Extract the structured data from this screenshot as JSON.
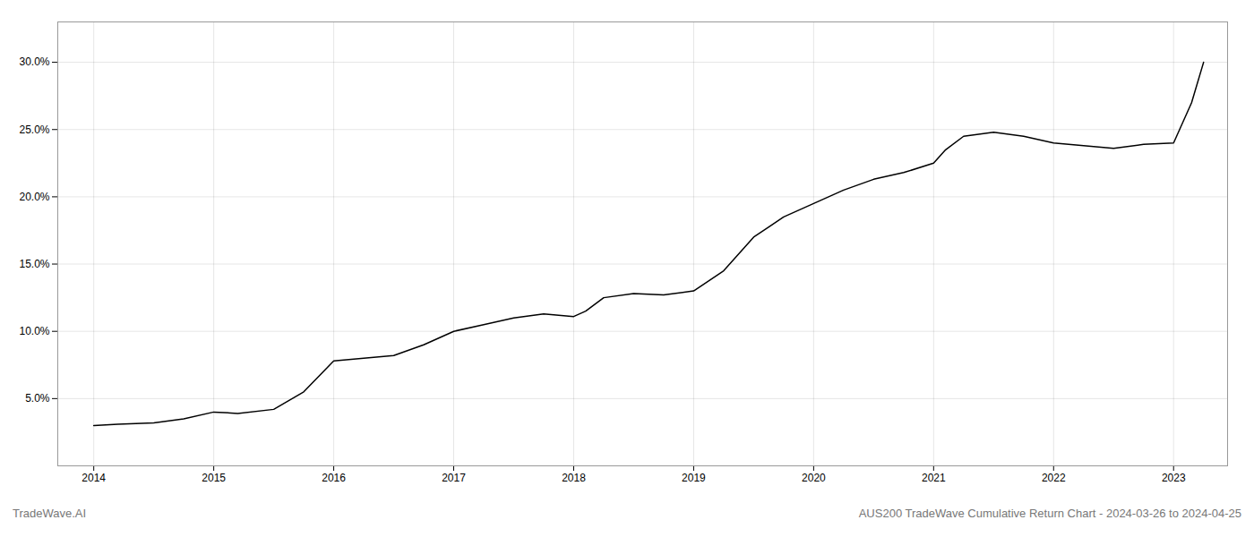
{
  "chart_data": {
    "type": "line",
    "annotations": [
      "TradeWave.AI",
      "AUS200 TradeWave Cumulative Return Chart - 2024-03-26 to 2024-04-25"
    ],
    "x": [
      2014.0,
      2014.2,
      2014.5,
      2014.75,
      2015.0,
      2015.2,
      2015.5,
      2015.75,
      2016.0,
      2016.25,
      2016.5,
      2016.75,
      2017.0,
      2017.25,
      2017.5,
      2017.75,
      2018.0,
      2018.1,
      2018.25,
      2018.5,
      2018.75,
      2019.0,
      2019.25,
      2019.5,
      2019.75,
      2020.0,
      2020.25,
      2020.5,
      2020.75,
      2021.0,
      2021.1,
      2021.25,
      2021.5,
      2021.75,
      2022.0,
      2022.25,
      2022.5,
      2022.75,
      2023.0,
      2023.15,
      2023.25
    ],
    "values": [
      3.0,
      3.1,
      3.2,
      3.5,
      4.0,
      3.9,
      4.2,
      5.5,
      7.8,
      8.0,
      8.2,
      9.0,
      10.0,
      10.5,
      11.0,
      11.3,
      11.1,
      11.5,
      12.5,
      12.8,
      12.7,
      13.0,
      14.5,
      17.0,
      18.5,
      19.5,
      20.5,
      21.3,
      21.8,
      22.5,
      23.5,
      24.5,
      24.8,
      24.5,
      24.0,
      23.8,
      23.6,
      23.9,
      24.0,
      27.0,
      30.0
    ],
    "xlim": [
      2013.7,
      2023.45
    ],
    "xticks": [
      2014,
      2015,
      2016,
      2017,
      2018,
      2019,
      2020,
      2021,
      2022,
      2023
    ],
    "ylim": [
      0,
      33
    ],
    "yticks": [
      {
        "value": 5,
        "label": "5.0%"
      },
      {
        "value": 10,
        "label": "10.0%"
      },
      {
        "value": 15,
        "label": "15.0%"
      },
      {
        "value": 20,
        "label": "20.0%"
      },
      {
        "value": 25,
        "label": "25.0%"
      },
      {
        "value": 30,
        "label": "30.0%"
      }
    ],
    "grid": true
  }
}
